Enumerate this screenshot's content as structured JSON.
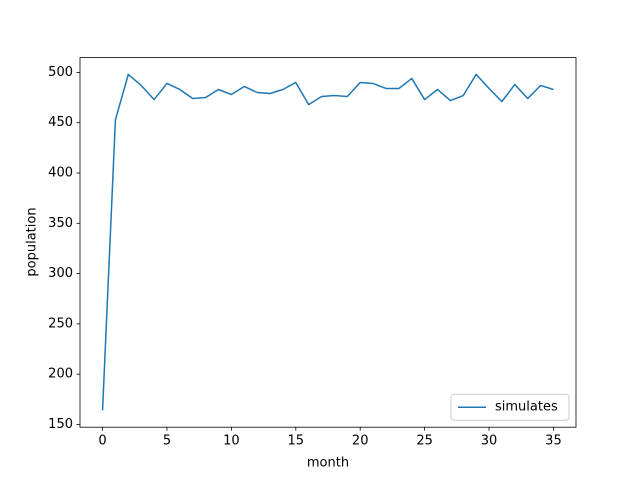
{
  "chart_data": {
    "type": "line",
    "xlabel": "month",
    "ylabel": "population",
    "x": [
      0,
      1,
      2,
      3,
      4,
      5,
      6,
      7,
      8,
      9,
      10,
      11,
      12,
      13,
      14,
      15,
      16,
      17,
      18,
      19,
      20,
      21,
      22,
      23,
      24,
      25,
      26,
      27,
      28,
      29,
      30,
      31,
      32,
      33,
      34,
      35
    ],
    "series": [
      {
        "name": "simulates",
        "color": "#1f77b4",
        "values": [
          164,
          453,
          498,
          487,
          473,
          489,
          483,
          474,
          475,
          483,
          478,
          486,
          480,
          479,
          483,
          490,
          468,
          476,
          477,
          476,
          490,
          489,
          484,
          484,
          494,
          473,
          483,
          472,
          477,
          498,
          484,
          471,
          488,
          474,
          487,
          483
        ]
      }
    ],
    "xlim": [
      -1.75,
      36.75
    ],
    "xticks": [
      0,
      5,
      10,
      15,
      20,
      25,
      30,
      35
    ],
    "ylim": [
      147.3,
      514.7
    ],
    "yticks": [
      150,
      200,
      250,
      300,
      350,
      400,
      450,
      500
    ],
    "grid": false,
    "legend_loc": "lower right"
  }
}
